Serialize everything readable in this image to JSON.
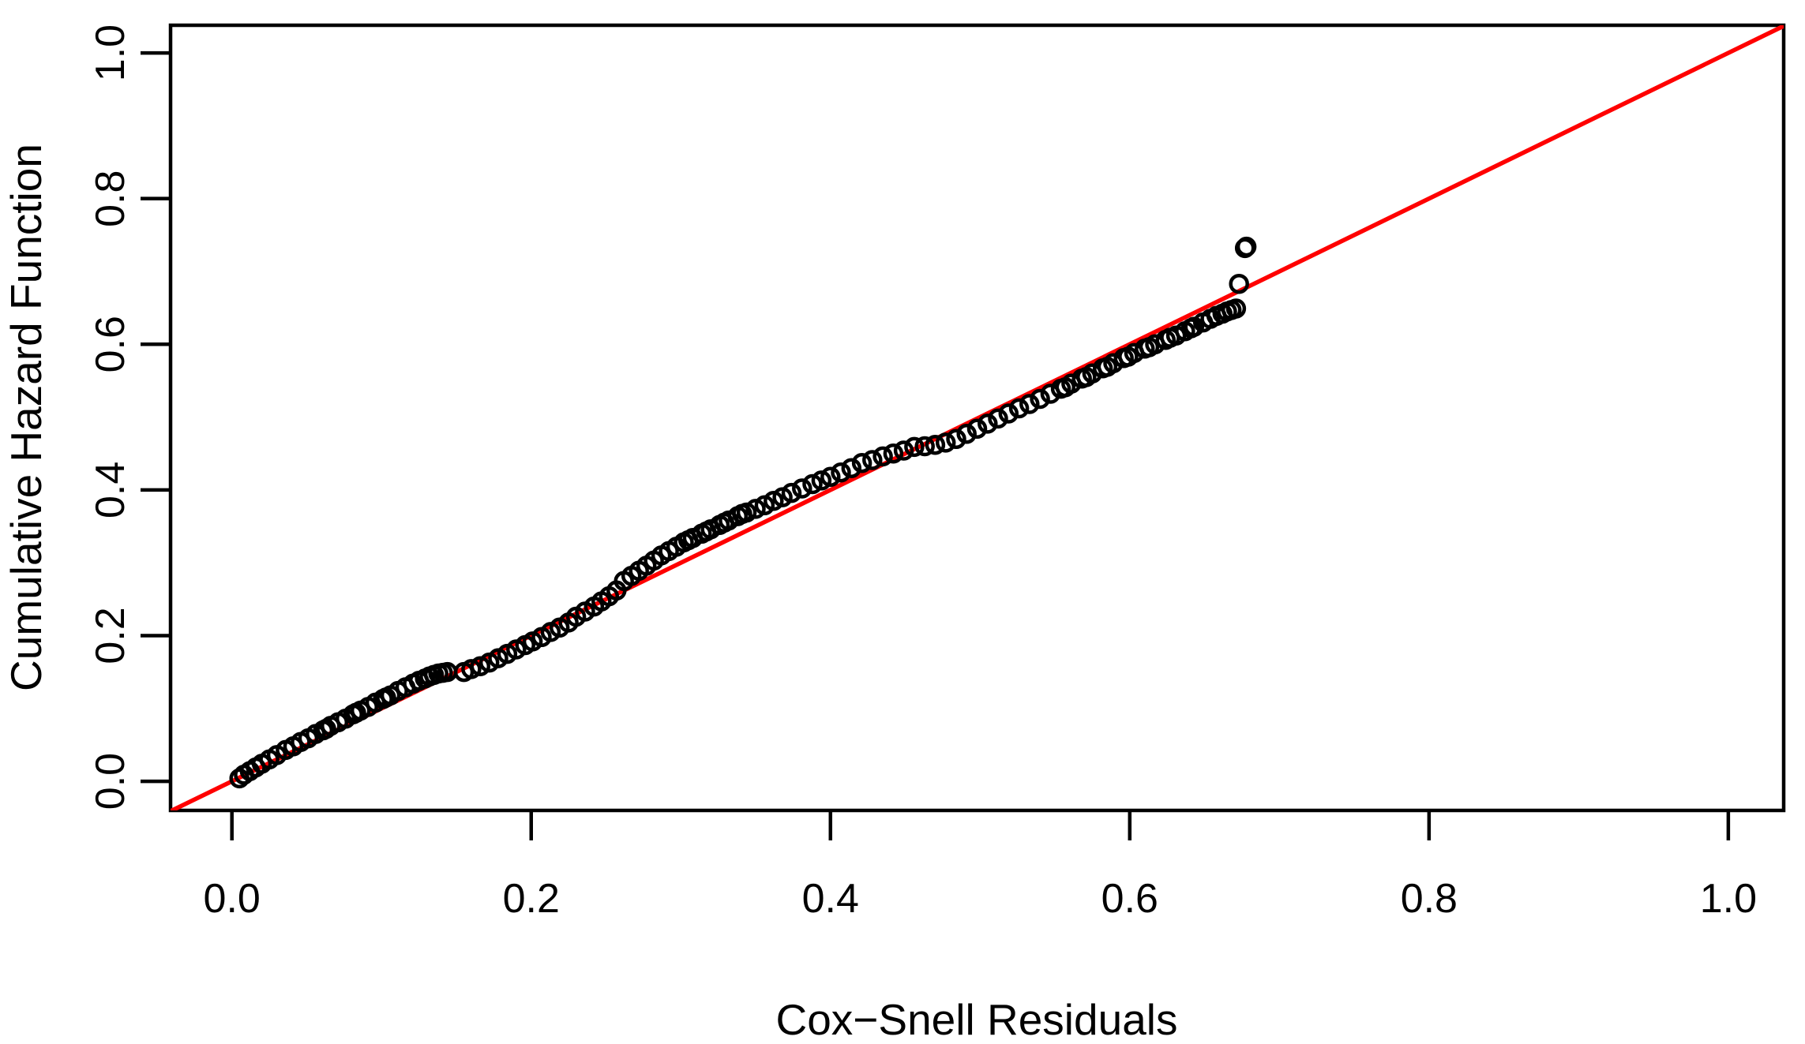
{
  "figure": {
    "background": "#ffffff",
    "foreground": "#000000"
  },
  "chart_data": {
    "type": "scatter",
    "title": "",
    "xlabel": "Cox−Snell Residuals",
    "ylabel": "Cumulative Hazard Function",
    "grid": false,
    "legend": "none",
    "x_axis": {
      "ticks": [
        0.0,
        0.2,
        0.4,
        0.6,
        0.8,
        1.0
      ],
      "tick_labels": [
        "0.0",
        "0.2",
        "0.4",
        "0.6",
        "0.8",
        "1.0"
      ],
      "range": [
        -0.041,
        1.037
      ]
    },
    "y_axis": {
      "ticks": [
        0.0,
        0.2,
        0.4,
        0.6,
        0.8,
        1.0
      ],
      "tick_labels": [
        "0.0",
        "0.2",
        "0.4",
        "0.6",
        "0.8",
        "1.0"
      ],
      "range": [
        -0.04,
        1.038
      ]
    },
    "reference_line": {
      "type": "abline",
      "intercept": 0,
      "slope": 1,
      "color": "#ff0000",
      "description": "y = x identity line"
    },
    "series": [
      {
        "name": "cox-snell-residual-points",
        "marker": "open-circle",
        "color": "#000000",
        "points": [
          [
            0.005,
            0.004
          ],
          [
            0.008,
            0.009
          ],
          [
            0.012,
            0.014
          ],
          [
            0.016,
            0.019
          ],
          [
            0.02,
            0.024
          ],
          [
            0.025,
            0.03
          ],
          [
            0.03,
            0.036
          ],
          [
            0.036,
            0.043
          ],
          [
            0.041,
            0.048
          ],
          [
            0.046,
            0.054
          ],
          [
            0.051,
            0.059
          ],
          [
            0.056,
            0.065
          ],
          [
            0.061,
            0.07
          ],
          [
            0.063,
            0.072
          ],
          [
            0.066,
            0.076
          ],
          [
            0.071,
            0.081
          ],
          [
            0.076,
            0.086
          ],
          [
            0.081,
            0.092
          ],
          [
            0.083,
            0.094
          ],
          [
            0.086,
            0.097
          ],
          [
            0.091,
            0.102
          ],
          [
            0.096,
            0.108
          ],
          [
            0.101,
            0.113
          ],
          [
            0.103,
            0.115
          ],
          [
            0.106,
            0.118
          ],
          [
            0.111,
            0.124
          ],
          [
            0.116,
            0.129
          ],
          [
            0.121,
            0.134
          ],
          [
            0.125,
            0.138
          ],
          [
            0.129,
            0.141
          ],
          [
            0.132,
            0.144
          ],
          [
            0.135,
            0.146
          ],
          [
            0.138,
            0.148
          ],
          [
            0.141,
            0.149
          ],
          [
            0.144,
            0.15
          ],
          [
            0.155,
            0.15
          ],
          [
            0.16,
            0.154
          ],
          [
            0.166,
            0.158
          ],
          [
            0.172,
            0.163
          ],
          [
            0.178,
            0.169
          ],
          [
            0.184,
            0.175
          ],
          [
            0.19,
            0.181
          ],
          [
            0.196,
            0.187
          ],
          [
            0.201,
            0.192
          ],
          [
            0.207,
            0.198
          ],
          [
            0.213,
            0.205
          ],
          [
            0.219,
            0.211
          ],
          [
            0.225,
            0.218
          ],
          [
            0.23,
            0.226
          ],
          [
            0.236,
            0.233
          ],
          [
            0.242,
            0.24
          ],
          [
            0.247,
            0.247
          ],
          [
            0.252,
            0.254
          ],
          [
            0.257,
            0.262
          ],
          [
            0.262,
            0.275
          ],
          [
            0.267,
            0.282
          ],
          [
            0.272,
            0.289
          ],
          [
            0.277,
            0.296
          ],
          [
            0.282,
            0.303
          ],
          [
            0.287,
            0.31
          ],
          [
            0.292,
            0.316
          ],
          [
            0.297,
            0.322
          ],
          [
            0.302,
            0.328
          ],
          [
            0.305,
            0.331
          ],
          [
            0.308,
            0.334
          ],
          [
            0.314,
            0.34
          ],
          [
            0.317,
            0.343
          ],
          [
            0.32,
            0.346
          ],
          [
            0.326,
            0.352
          ],
          [
            0.329,
            0.355
          ],
          [
            0.332,
            0.358
          ],
          [
            0.338,
            0.364
          ],
          [
            0.341,
            0.367
          ],
          [
            0.344,
            0.369
          ],
          [
            0.35,
            0.374
          ],
          [
            0.356,
            0.379
          ],
          [
            0.362,
            0.385
          ],
          [
            0.368,
            0.39
          ],
          [
            0.374,
            0.396
          ],
          [
            0.381,
            0.402
          ],
          [
            0.388,
            0.408
          ],
          [
            0.394,
            0.413
          ],
          [
            0.4,
            0.418
          ],
          [
            0.407,
            0.424
          ],
          [
            0.414,
            0.43
          ],
          [
            0.421,
            0.437
          ],
          [
            0.428,
            0.441
          ],
          [
            0.435,
            0.446
          ],
          [
            0.442,
            0.45
          ],
          [
            0.449,
            0.454
          ],
          [
            0.456,
            0.459
          ],
          [
            0.463,
            0.46
          ],
          [
            0.47,
            0.462
          ],
          [
            0.477,
            0.465
          ],
          [
            0.484,
            0.47
          ],
          [
            0.491,
            0.477
          ],
          [
            0.498,
            0.484
          ],
          [
            0.505,
            0.491
          ],
          [
            0.512,
            0.498
          ],
          [
            0.519,
            0.505
          ],
          [
            0.526,
            0.512
          ],
          [
            0.533,
            0.518
          ],
          [
            0.54,
            0.525
          ],
          [
            0.547,
            0.532
          ],
          [
            0.554,
            0.539
          ],
          [
            0.557,
            0.541
          ],
          [
            0.561,
            0.546
          ],
          [
            0.568,
            0.553
          ],
          [
            0.571,
            0.555
          ],
          [
            0.575,
            0.56
          ],
          [
            0.582,
            0.567
          ],
          [
            0.585,
            0.569
          ],
          [
            0.589,
            0.574
          ],
          [
            0.596,
            0.581
          ],
          [
            0.599,
            0.583
          ],
          [
            0.603,
            0.588
          ],
          [
            0.61,
            0.594
          ],
          [
            0.613,
            0.596
          ],
          [
            0.617,
            0.6
          ],
          [
            0.624,
            0.606
          ],
          [
            0.627,
            0.609
          ],
          [
            0.631,
            0.612
          ],
          [
            0.637,
            0.618
          ],
          [
            0.641,
            0.622
          ],
          [
            0.643,
            0.624
          ],
          [
            0.649,
            0.63
          ],
          [
            0.654,
            0.635
          ],
          [
            0.658,
            0.639
          ],
          [
            0.662,
            0.642
          ],
          [
            0.665,
            0.645
          ],
          [
            0.668,
            0.647
          ],
          [
            0.671,
            0.649
          ],
          [
            0.673,
            0.683
          ],
          [
            0.677,
            0.732
          ],
          [
            0.678,
            0.734
          ]
        ]
      }
    ]
  }
}
